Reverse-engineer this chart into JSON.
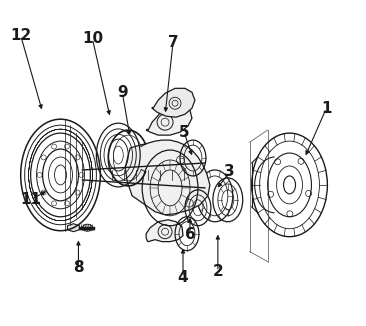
{
  "bg_color": "#ffffff",
  "line_color": "#1a1a1a",
  "fig_width": 3.66,
  "fig_height": 3.26,
  "dpi": 100,
  "label_specs": [
    [
      "1",
      327,
      108,
      305,
      158,
      "-|>"
    ],
    [
      "2",
      218,
      272,
      218,
      232,
      "-|>"
    ],
    [
      "3",
      230,
      172,
      216,
      190,
      "-|>"
    ],
    [
      "4",
      183,
      278,
      183,
      246,
      "-|>"
    ],
    [
      "5",
      184,
      132,
      193,
      158,
      "-|>"
    ],
    [
      "6",
      190,
      235,
      190,
      215,
      "-|>"
    ],
    [
      "7",
      173,
      42,
      165,
      115,
      "-|>"
    ],
    [
      "8",
      78,
      268,
      78,
      238,
      "-|>"
    ],
    [
      "9",
      122,
      92,
      130,
      138,
      "-|>"
    ],
    [
      "10",
      92,
      38,
      110,
      118,
      "-|>"
    ],
    [
      "11",
      30,
      200,
      48,
      190,
      "-|>"
    ],
    [
      "12",
      20,
      35,
      42,
      112,
      "-|>"
    ]
  ]
}
